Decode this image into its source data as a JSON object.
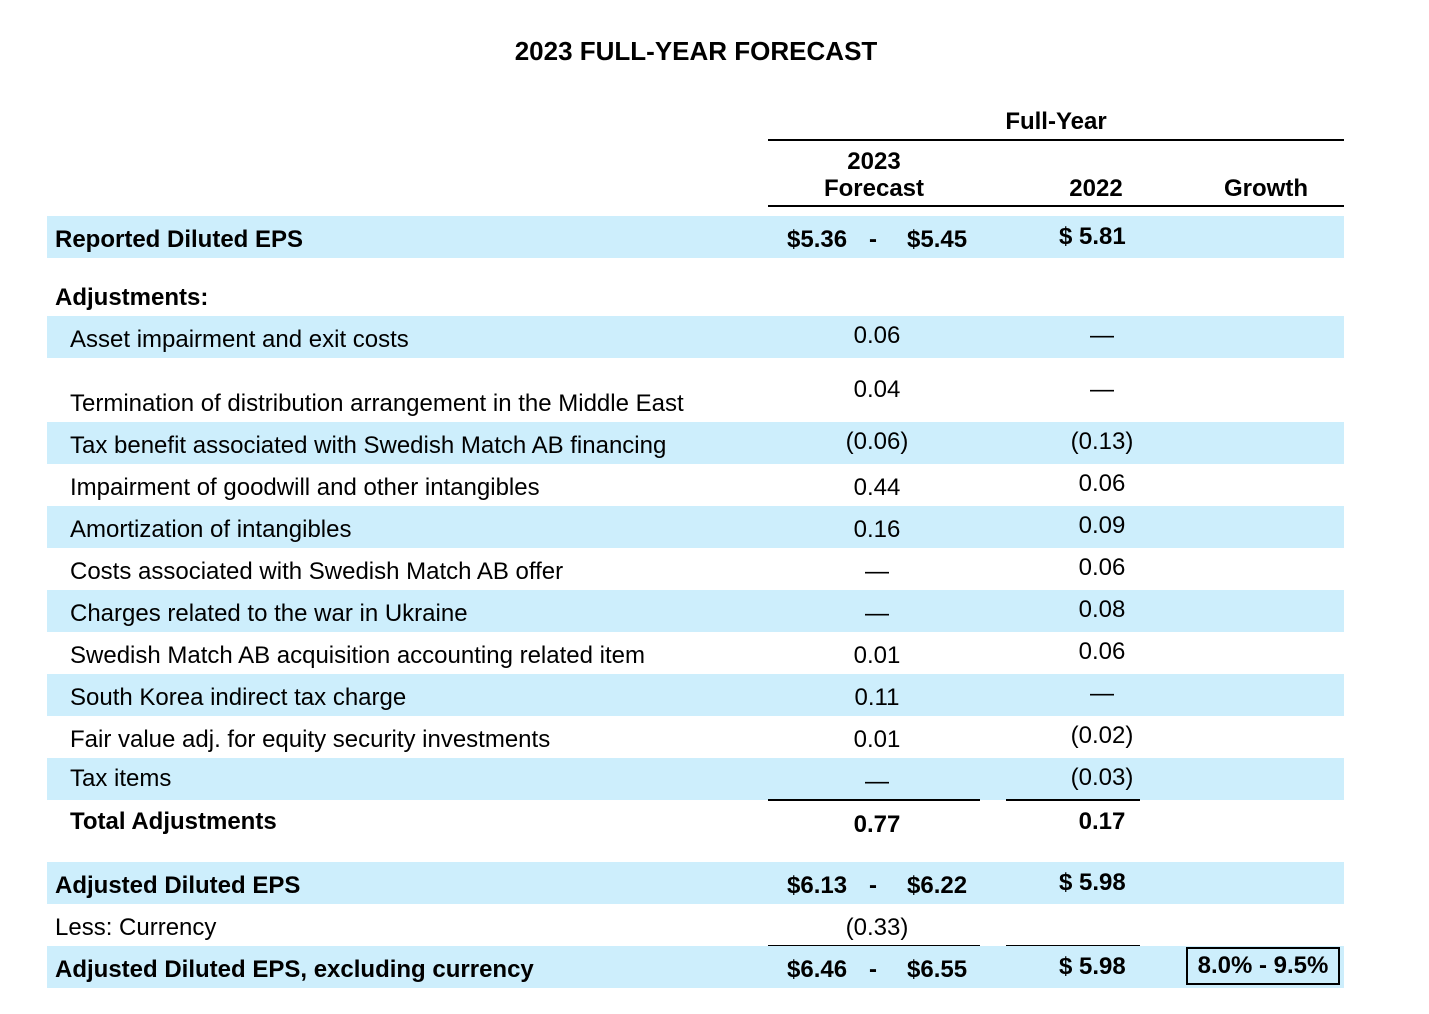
{
  "title": "2023 FULL-YEAR FORECAST",
  "header": {
    "group_label": "Full-Year",
    "col_forecast_line1": "2023",
    "col_forecast_line2": "Forecast",
    "col_prior": "2022",
    "col_growth": "Growth"
  },
  "reported": {
    "label": "Reported Diluted EPS",
    "forecast_low": "$5.36",
    "dash": "-",
    "forecast_high": "$5.45",
    "prior": "$ 5.81"
  },
  "adjustments_heading": "Adjustments:",
  "adjustments": [
    {
      "label": "Asset impairment and exit costs",
      "forecast": "0.06",
      "prior": "—"
    },
    {
      "label": "Termination of distribution arrangement in the Middle East",
      "forecast": "0.04",
      "prior": "—"
    },
    {
      "label": "Tax benefit associated with Swedish Match AB financing",
      "forecast": "(0.06)",
      "prior": "(0.13)"
    },
    {
      "label": "Impairment of goodwill and other intangibles",
      "forecast": "0.44",
      "prior": "0.06"
    },
    {
      "label": "Amortization of intangibles",
      "forecast": "0.16",
      "prior": "0.09"
    },
    {
      "label": "Costs associated with Swedish Match AB offer",
      "forecast": "—",
      "prior": "0.06"
    },
    {
      "label": "Charges related to the war in Ukraine",
      "forecast": "—",
      "prior": "0.08"
    },
    {
      "label": "Swedish Match AB acquisition accounting related item",
      "forecast": "0.01",
      "prior": "0.06"
    },
    {
      "label": "South Korea indirect tax charge",
      "forecast": "0.11",
      "prior": "—"
    },
    {
      "label": "Fair value adj. for equity security investments",
      "forecast": "0.01",
      "prior": "(0.02)"
    },
    {
      "label": "Tax items",
      "forecast": "—",
      "prior": "(0.03)"
    }
  ],
  "total_adjustments": {
    "label": "Total Adjustments",
    "forecast": "0.77",
    "prior": "0.17"
  },
  "adjusted": {
    "label": "Adjusted Diluted EPS",
    "forecast_low": "$6.13",
    "dash": "-",
    "forecast_high": "$6.22",
    "prior": "$ 5.98"
  },
  "currency": {
    "label": "Less: Currency",
    "forecast": "(0.33)"
  },
  "adjusted_ex_currency": {
    "label": "Adjusted Diluted EPS, excluding currency",
    "forecast_low": "$6.46",
    "dash": "-",
    "forecast_high": "$6.55",
    "prior": "$ 5.98",
    "growth": "8.0% - 9.5%"
  },
  "colors": {
    "row_shade": "#cdeefc",
    "text": "#000000"
  }
}
